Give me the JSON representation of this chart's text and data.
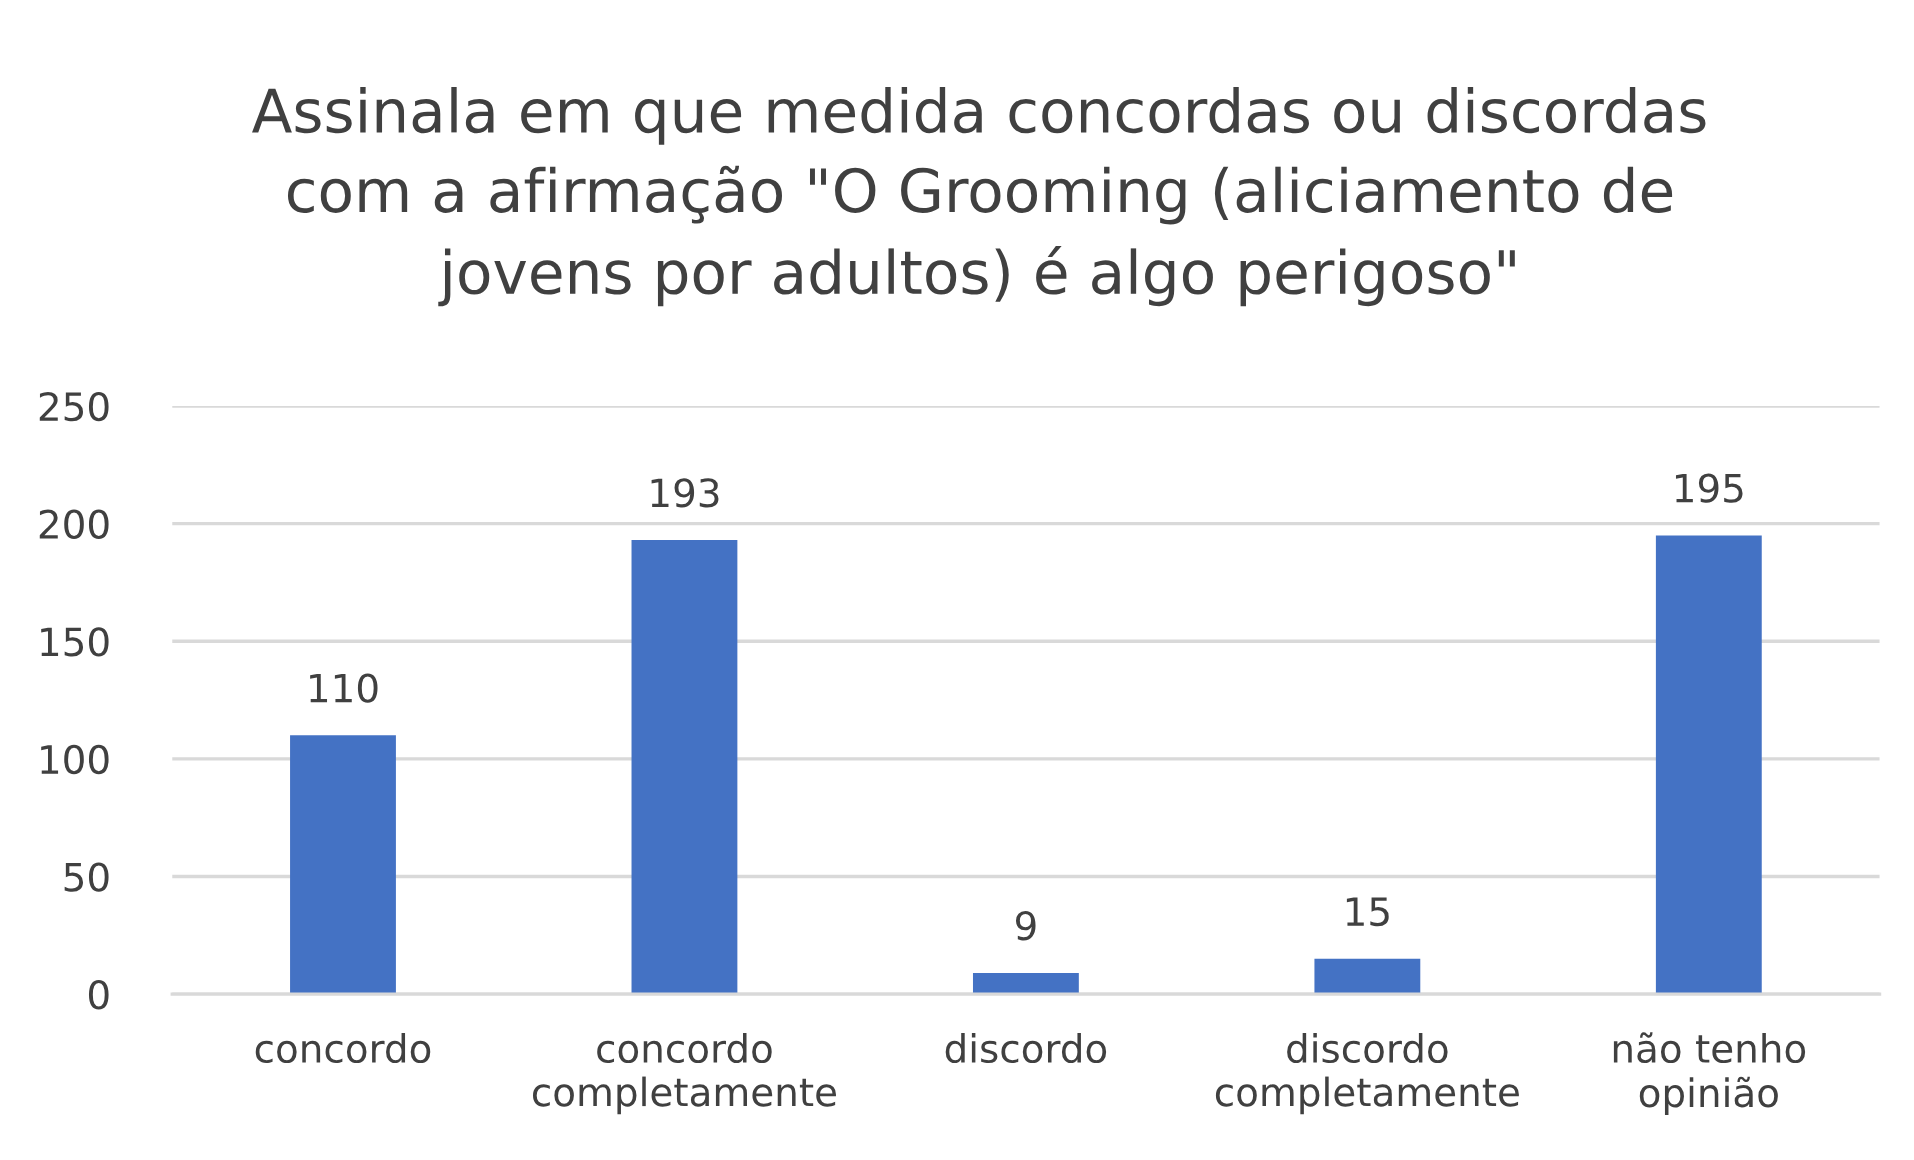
{
  "chart_data": {
    "type": "bar",
    "title": "Assinala em que medida concordas ou discordas\ncom a afirmação \"O Grooming (aliciamento de\njovens por adultos) é algo perigoso\"",
    "categories": [
      "concordo",
      "concordo\ncompletamente",
      "discordo",
      "discordo\ncompletamente",
      "não tenho\nopinião"
    ],
    "values": [
      110,
      193,
      9,
      15,
      195
    ],
    "color": "#4472c4",
    "ylim": [
      0,
      250
    ],
    "yticks": [
      0,
      50,
      100,
      150,
      200,
      250
    ],
    "grid": "y",
    "data_labels": true
  }
}
